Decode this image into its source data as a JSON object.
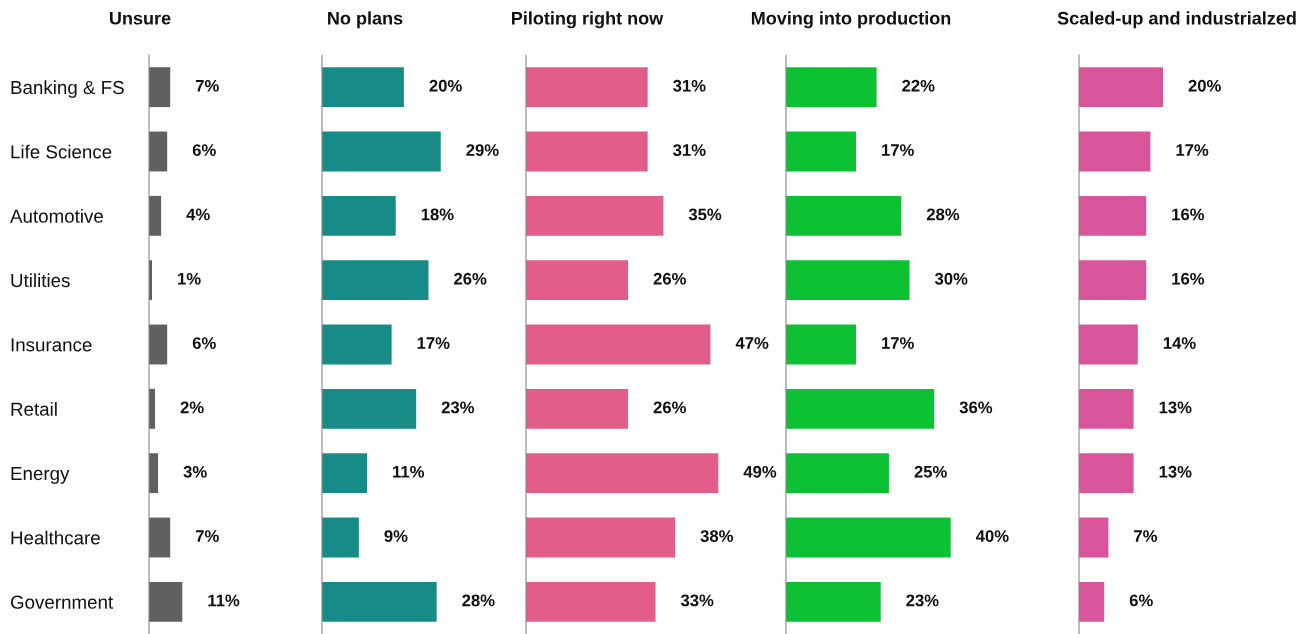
{
  "chart_data": [
    {
      "type": "bar",
      "orientation": "horizontal",
      "title": "Unsure",
      "categories": [
        "Banking & FS",
        "Life Science",
        "Automotive",
        "Utilities",
        "Insurance",
        "Retail",
        "Energy",
        "Healthcare",
        "Government"
      ],
      "values": [
        7,
        6,
        4,
        1,
        6,
        2,
        3,
        7,
        11
      ],
      "value_labels": [
        "7%",
        "6%",
        "4%",
        "1%",
        "6%",
        "2%",
        "3%",
        "7%",
        "11%"
      ],
      "color": "#606060",
      "tick_labels": "y"
    },
    {
      "type": "bar",
      "orientation": "horizontal",
      "title": "No plans",
      "values": [
        20,
        29,
        18,
        26,
        17,
        23,
        11,
        9,
        28
      ],
      "value_labels": [
        "20%",
        "29%",
        "18%",
        "26%",
        "17%",
        "23%",
        "11%",
        "9%",
        "28%"
      ],
      "color": "#178c86",
      "tick_labels": false
    },
    {
      "type": "bar",
      "orientation": "horizontal",
      "title": "Piloting right now",
      "values": [
        31,
        31,
        35,
        26,
        47,
        26,
        49,
        38,
        33
      ],
      "value_labels": [
        "31%",
        "31%",
        "35%",
        "26%",
        "47%",
        "26%",
        "49%",
        "38%",
        "33%"
      ],
      "color": "#e25d88",
      "tick_labels": false
    },
    {
      "type": "bar",
      "orientation": "horizontal",
      "title": "Moving into production",
      "values": [
        22,
        17,
        28,
        30,
        17,
        36,
        25,
        40,
        23
      ],
      "value_labels": [
        "22%",
        "17%",
        "28%",
        "30%",
        "17%",
        "36%",
        "25%",
        "40%",
        "23%"
      ],
      "color": "#0cc232",
      "tick_labels": false
    },
    {
      "type": "bar",
      "orientation": "horizontal",
      "title": "Scaled-up and industrialzed",
      "values": [
        20,
        17,
        16,
        16,
        14,
        13,
        13,
        7,
        6
      ],
      "value_labels": [
        "20%",
        "17%",
        "16%",
        "16%",
        "14%",
        "13%",
        "13%",
        "7%",
        "6%"
      ],
      "color": "#d9559a",
      "tick_labels": false
    }
  ]
}
